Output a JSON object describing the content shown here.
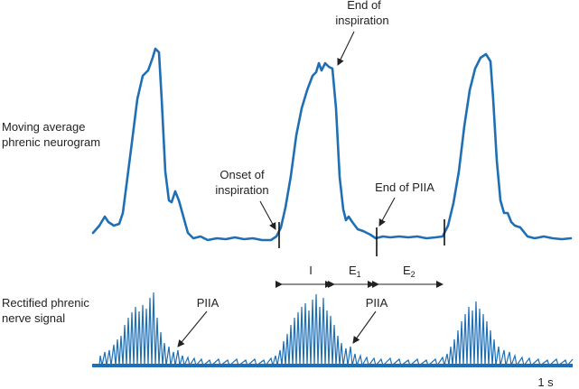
{
  "labels": {
    "neurogram_line1": "Moving average",
    "neurogram_line2": "phrenic neurogram",
    "rectified_line1": "Rectified phrenic",
    "rectified_line2": "nerve signal",
    "end_insp_line1": "End of",
    "end_insp_line2": "inspiration",
    "onset_line1": "Onset of",
    "onset_line2": "inspiration",
    "end_piia": "End of PIIA",
    "phase_i": "I",
    "phase_e": "E",
    "phase_e1_sub": "1",
    "phase_e2_sub": "2",
    "piia_1": "PIIA",
    "piia_2": "PIIA",
    "scale": "1 s"
  },
  "colors": {
    "trace": "#1f6fb5",
    "text": "#222222"
  }
}
